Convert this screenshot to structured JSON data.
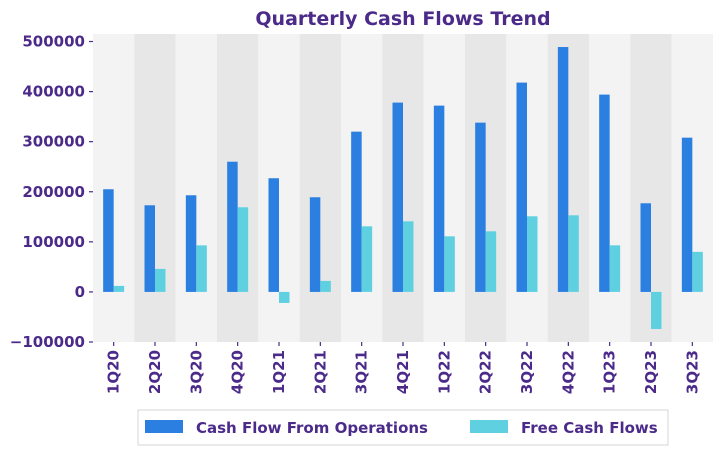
{
  "chart_data": {
    "type": "bar",
    "title": "Quarterly Cash Flows Trend",
    "xlabel": "",
    "ylabel": "",
    "categories": [
      "1Q20",
      "2Q20",
      "3Q20",
      "4Q20",
      "1Q21",
      "2Q21",
      "3Q21",
      "4Q21",
      "1Q22",
      "2Q22",
      "3Q22",
      "4Q22",
      "1Q23",
      "2Q23",
      "3Q23"
    ],
    "series": [
      {
        "name": "Cash Flow From Operations",
        "color": "#2a7fe0",
        "values": [
          205000,
          173000,
          193000,
          260000,
          227000,
          189000,
          320000,
          378000,
          372000,
          338000,
          418000,
          489000,
          394000,
          177000,
          308000
        ]
      },
      {
        "name": "Free Cash Flows",
        "color": "#5fd0e0",
        "values": [
          12000,
          46000,
          93000,
          169000,
          -22000,
          22000,
          131000,
          141000,
          111000,
          121000,
          151000,
          153000,
          93000,
          -74000,
          80000
        ]
      }
    ],
    "ylim": [
      -100000,
      515000
    ],
    "yticks": [
      -100000,
      0,
      100000,
      200000,
      300000,
      400000,
      500000
    ],
    "ytick_labels": [
      "−100000",
      "0",
      "100000",
      "200000",
      "300000",
      "400000",
      "500000"
    ],
    "grid": false,
    "band_colors": [
      "#f3f3f3",
      "#e7e7e7"
    ],
    "text_color": "#4b2a8a",
    "legend_position": "bottom-center"
  }
}
